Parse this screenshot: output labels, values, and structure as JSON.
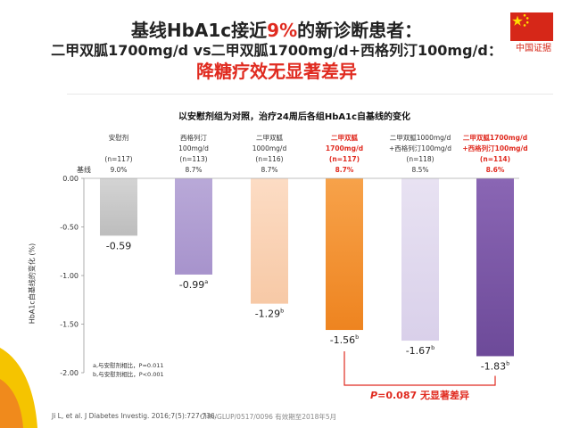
{
  "title_line1_pre": "基线HbA1c接近",
  "title_line1_hl": "9%",
  "title_line1_post": "的新诊断患者：",
  "title_line2": "二甲双胍1700mg/d vs二甲双胍1700mg/d+西格列汀100mg/d：",
  "title_line3": "降糖疗效无显著差异",
  "flag_label": "中国证据",
  "colors": {
    "accent_red": "#e02b20",
    "flag_red": "#d62718",
    "flag_star": "#ffde00"
  },
  "chart_data": {
    "type": "bar",
    "subtitle": "以安慰剂组为对照，治疗24周后各组HbA1c自基线的变化",
    "ylabel": "HbA1c自基线的变化 (%)",
    "ylim": [
      -2.0,
      0.0
    ],
    "yticks": [
      "0.00",
      "-0.50",
      "-1.00",
      "-1.50",
      "-2.00"
    ],
    "baseline_label": "基线",
    "groups": [
      {
        "header": [
          "安慰剂",
          "",
          "(n=117)",
          "9.0%"
        ],
        "highlight": false,
        "value": -0.59,
        "label": "-0.59",
        "sup": "",
        "color_top": "#d4d4d4",
        "color_bottom": "#bdbdbd"
      },
      {
        "header": [
          "西格列汀",
          "100mg/d",
          "(n=113)",
          "8.7%"
        ],
        "highlight": false,
        "value": -0.99,
        "label": "-0.99",
        "sup": "a",
        "color_top": "#b9a9d8",
        "color_bottom": "#a793cc"
      },
      {
        "header": [
          "二甲双胍",
          "1000mg/d",
          "(n=116)",
          "8.7%"
        ],
        "highlight": false,
        "value": -1.29,
        "label": "-1.29",
        "sup": "b",
        "color_top": "#fcdcc4",
        "color_bottom": "#f7c9a6"
      },
      {
        "header": [
          "二甲双胍",
          "1700mg/d",
          "(n=117)",
          "8.7%"
        ],
        "highlight": true,
        "value": -1.56,
        "label": "-1.56",
        "sup": "b",
        "color_top": "#f7a24a",
        "color_bottom": "#ee8420"
      },
      {
        "header": [
          "二甲双胍1000mg/d",
          "+西格列汀100mg/d",
          "(n=118)",
          "8.5%"
        ],
        "highlight": false,
        "value": -1.67,
        "label": "-1.67",
        "sup": "b",
        "color_top": "#e8e2f2",
        "color_bottom": "#d9d0ea"
      },
      {
        "header": [
          "二甲双胍1700mg/d",
          "+西格列汀100mg/d",
          "(n=114)",
          "8.6%"
        ],
        "highlight": true,
        "value": -1.83,
        "label": "-1.83",
        "sup": "b",
        "color_top": "#8a66b4",
        "color_bottom": "#6d4a99"
      }
    ],
    "annotation": {
      "p_italic": "P",
      "text": "=0.087 无显著差异"
    },
    "footnotes": [
      "a,与安慰剂相比，P=0.011",
      "b,与安慰剂相比，P<0.001"
    ]
  },
  "reference": "Ji L, et al. J Diabetes Investig. 2016;7(5):727-736.",
  "doc_code": "CHN/GLUP/0517/0096   有效期至2018年5月"
}
